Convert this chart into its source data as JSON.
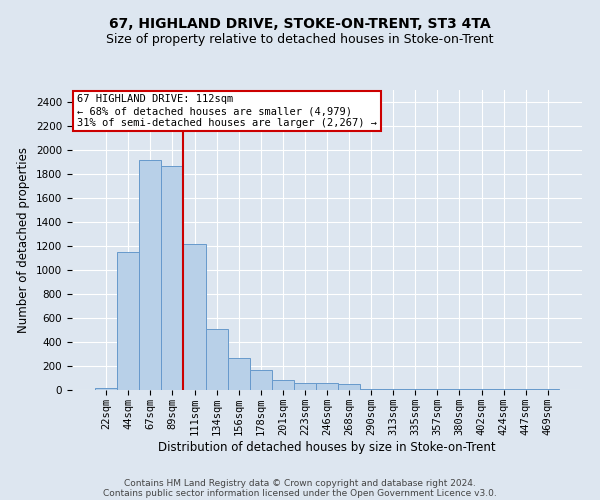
{
  "title1": "67, HIGHLAND DRIVE, STOKE-ON-TRENT, ST3 4TA",
  "title2": "Size of property relative to detached houses in Stoke-on-Trent",
  "xlabel": "Distribution of detached houses by size in Stoke-on-Trent",
  "ylabel": "Number of detached properties",
  "bins": [
    "22sqm",
    "44sqm",
    "67sqm",
    "89sqm",
    "111sqm",
    "134sqm",
    "156sqm",
    "178sqm",
    "201sqm",
    "223sqm",
    "246sqm",
    "268sqm",
    "290sqm",
    "313sqm",
    "335sqm",
    "357sqm",
    "380sqm",
    "402sqm",
    "424sqm",
    "447sqm",
    "469sqm"
  ],
  "values": [
    15,
    1150,
    1920,
    1870,
    1220,
    510,
    270,
    170,
    80,
    60,
    55,
    50,
    10,
    10,
    5,
    5,
    5,
    5,
    5,
    5,
    5
  ],
  "bar_color": "#b8d0e8",
  "bar_edge_color": "#6699cc",
  "vline_bin_idx": 4,
  "highlight_line_color": "#cc0000",
  "annotation_text": "67 HIGHLAND DRIVE: 112sqm\n← 68% of detached houses are smaller (4,979)\n31% of semi-detached houses are larger (2,267) →",
  "annotation_box_color": "#ffffff",
  "annotation_box_edge": "#cc0000",
  "ylim": [
    0,
    2500
  ],
  "yticks": [
    0,
    200,
    400,
    600,
    800,
    1000,
    1200,
    1400,
    1600,
    1800,
    2000,
    2200,
    2400
  ],
  "bg_color": "#dde6f0",
  "plot_bg_color": "#dde6f0",
  "footer1": "Contains HM Land Registry data © Crown copyright and database right 2024.",
  "footer2": "Contains public sector information licensed under the Open Government Licence v3.0.",
  "title_fontsize": 10,
  "subtitle_fontsize": 9,
  "axis_label_fontsize": 8.5,
  "tick_fontsize": 7.5,
  "footer_fontsize": 6.5
}
